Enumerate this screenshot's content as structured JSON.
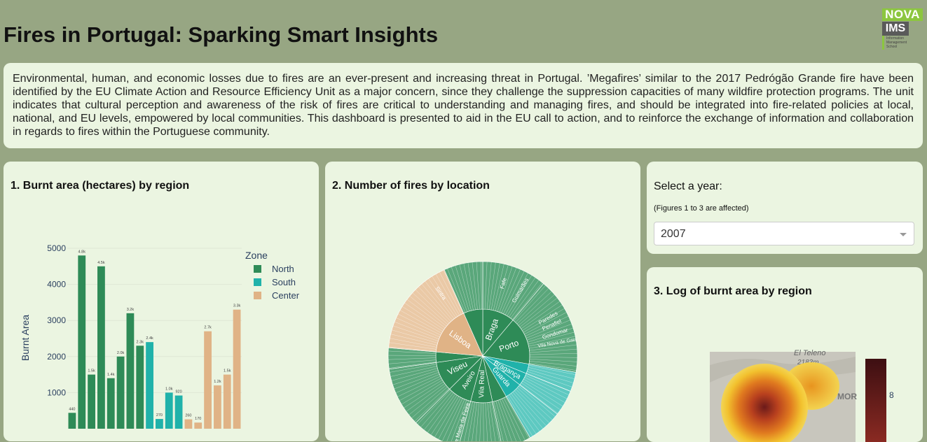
{
  "header": {
    "title": "Fires in Portugal: Sparking Smart Insights",
    "logo": {
      "top": "NOVA",
      "middle": "IMS",
      "sub": [
        "Information",
        "Management",
        "School"
      ]
    }
  },
  "intro": {
    "text": "Environmental, human, and economic losses due to fires are an ever-present and increasing threat in Portugal. ’Megafires’ similar to the 2017 Pedrógão Grande fire have been identified by the EU Climate Action and Resource Efficiency Unit as a major concern, since they challenge the suppression capacities of many wildfire protection programs. The unit indicates that cultural perception and awareness of the risk of fires are critical to understanding and managing fires, and should be integrated into fire-related policies at local, national, and EU levels, empowered by local communities. This dashboard is presented to aid in the EU call to action, and to reinforce the exchange of information and collaboration in regards to fires within the Portuguese community."
  },
  "panel1": {
    "title": "1. Burnt area (hectares) by region"
  },
  "panel2": {
    "title": "2. Number of fires by location"
  },
  "year_select": {
    "label": "Select a year:",
    "note": "(Figures 1 to 3 are affected)",
    "value": "2007"
  },
  "panel3": {
    "title": "3. Log of burnt area by region",
    "map_labels": {
      "place": "El Teleno",
      "elevation": "2183m",
      "partial": "MOR"
    },
    "colorbar_tick": "8"
  },
  "colors": {
    "north": "#2e8b57",
    "south": "#20b2aa",
    "center": "#e0b386"
  },
  "chart_data": [
    {
      "type": "bar",
      "title": "",
      "xlabel": "",
      "ylabel": "Burnt Area",
      "ylim": [
        0,
        5000
      ],
      "yticks": [
        "1000",
        "2000",
        "3000",
        "4000",
        "5000"
      ],
      "legend": {
        "title": "Zone",
        "placement": "top-right",
        "entries": [
          "North",
          "South",
          "Center"
        ]
      },
      "values": [
        440,
        4800,
        1500,
        4500,
        1400,
        2000,
        3200,
        2300,
        2400,
        270,
        1000,
        920,
        260,
        170,
        2700,
        1200,
        1500,
        3300
      ],
      "zones": [
        "North",
        "North",
        "North",
        "North",
        "North",
        "North",
        "North",
        "North",
        "South",
        "South",
        "South",
        "South",
        "Center",
        "Center",
        "Center",
        "Center",
        "Center",
        "Center"
      ],
      "data_labels": [
        "440",
        "4.8k",
        "1.5k",
        "4.5k",
        "1.4k",
        "2.0k",
        "3.2k",
        "2.3k",
        "2.4k",
        "270",
        "1.0k",
        "920",
        "260",
        "170",
        "2.7k",
        "1.2k",
        "1.5k",
        "3.3k"
      ]
    },
    {
      "type": "sunburst",
      "inner_labels": [
        "Braga",
        "Porto",
        "Lisboa",
        "Viseu",
        "Aveiro",
        "Vila Real",
        "Bragança",
        "Guarda"
      ],
      "outer_labels": [
        "Sintra",
        "Fafe",
        "Guimarães",
        "Paredes",
        "Penafiel",
        "Gondomar",
        "Vila Nova de Gaia",
        "Santa Maria da Feira"
      ]
    },
    {
      "type": "heatmap",
      "colorbar_ticks": [
        "8"
      ]
    }
  ]
}
